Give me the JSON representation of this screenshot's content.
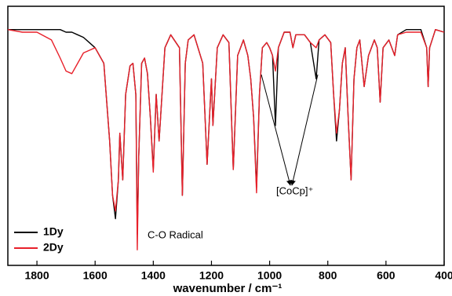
{
  "chart_data": {
    "type": "line",
    "x_label": "wavenumber / cm⁻¹",
    "xlim": [
      1900,
      400
    ],
    "xticks": [
      1800,
      1600,
      1400,
      1200,
      1000,
      800,
      600,
      400
    ],
    "ylim": [
      0,
      100
    ],
    "legend": "lower left",
    "annotations": [
      "C-O Radical",
      "[CoCp]⁺"
    ],
    "x": [
      1900,
      1850,
      1800,
      1750,
      1720,
      1700,
      1680,
      1660,
      1640,
      1620,
      1600,
      1570,
      1550,
      1540,
      1530,
      1520,
      1515,
      1505,
      1495,
      1480,
      1470,
      1460,
      1455,
      1450,
      1440,
      1430,
      1420,
      1410,
      1400,
      1390,
      1380,
      1360,
      1340,
      1310,
      1300,
      1290,
      1280,
      1260,
      1230,
      1215,
      1200,
      1195,
      1180,
      1160,
      1140,
      1125,
      1110,
      1090,
      1075,
      1065,
      1055,
      1045,
      1035,
      1025,
      1010,
      1000,
      990,
      980,
      970,
      950,
      930,
      920,
      910,
      880,
      860,
      840,
      830,
      810,
      790,
      780,
      770,
      760,
      750,
      740,
      730,
      720,
      710,
      700,
      690,
      675,
      660,
      640,
      630,
      620,
      610,
      590,
      580,
      570,
      560,
      530,
      480,
      460,
      455,
      450,
      430,
      400
    ],
    "series": [
      {
        "name": "1Dy",
        "color": "#000000",
        "values": [
          91,
          91,
          91,
          91,
          91,
          90,
          90,
          89,
          88,
          86,
          84,
          78,
          48,
          27,
          18,
          33,
          51,
          33,
          66,
          77,
          78,
          66,
          12,
          42,
          78,
          80,
          74,
          57,
          37,
          66,
          48,
          84,
          89,
          84,
          27,
          78,
          87,
          89,
          78,
          39,
          72,
          54,
          84,
          89,
          86,
          37,
          81,
          87,
          81,
          72,
          57,
          30,
          66,
          84,
          86,
          84,
          81,
          54,
          84,
          90,
          90,
          84,
          89,
          89,
          86,
          72,
          87,
          89,
          86,
          66,
          48,
          60,
          78,
          84,
          57,
          33,
          72,
          84,
          87,
          69,
          81,
          87,
          84,
          63,
          84,
          87,
          84,
          81,
          89,
          91,
          91,
          84,
          69,
          84,
          91,
          90
        ]
      },
      {
        "name": "2Dy",
        "color": "#e8202a",
        "values": [
          91,
          90,
          90,
          87,
          80,
          75,
          74,
          78,
          82,
          83,
          84,
          78,
          48,
          27,
          21,
          33,
          51,
          33,
          66,
          77,
          78,
          66,
          6,
          42,
          78,
          80,
          74,
          57,
          36,
          66,
          48,
          84,
          89,
          84,
          27,
          78,
          87,
          89,
          78,
          39,
          72,
          54,
          84,
          89,
          86,
          37,
          81,
          87,
          81,
          72,
          57,
          28,
          66,
          84,
          86,
          84,
          81,
          75,
          84,
          90,
          90,
          84,
          89,
          89,
          86,
          84,
          87,
          89,
          86,
          66,
          51,
          60,
          78,
          84,
          57,
          33,
          72,
          84,
          87,
          69,
          81,
          87,
          84,
          63,
          84,
          87,
          84,
          81,
          89,
          90,
          90,
          84,
          69,
          84,
          91,
          90
        ]
      }
    ]
  }
}
